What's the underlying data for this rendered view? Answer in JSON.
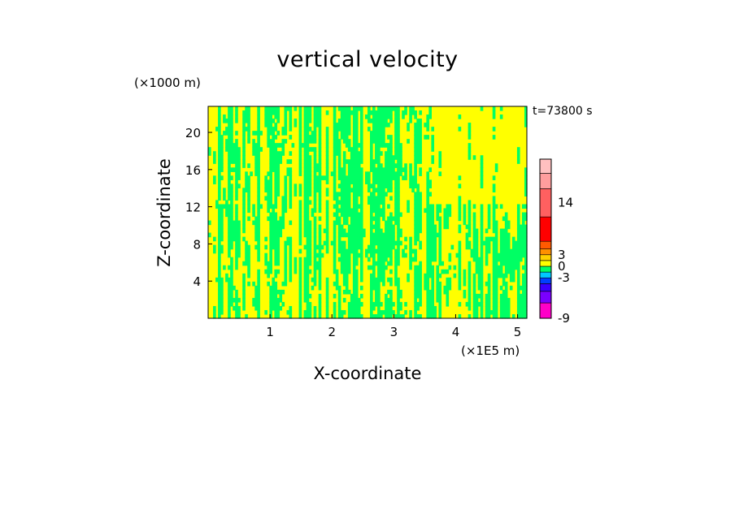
{
  "chart_data": {
    "type": "heatmap",
    "title": "vertical velocity",
    "xlabel": "X-coordinate",
    "ylabel": "Z-coordinate",
    "x_unit": "(×1E5 m)",
    "y_unit": "(×1000 m)",
    "time_label": "t=73800 s",
    "x_ticks": [
      1,
      2,
      3,
      4,
      5
    ],
    "y_ticks": [
      4,
      8,
      12,
      16,
      20
    ],
    "xlim": [
      0,
      5.15
    ],
    "ylim": [
      0,
      22.8
    ],
    "colorbar": {
      "tick_labels": [
        "-9",
        "-3",
        "0",
        "3",
        "14"
      ],
      "tick_values": [
        -9,
        -3,
        0,
        3,
        14
      ],
      "levels": [
        {
          "color": "#ff00c8"
        },
        {
          "color": "#7a00ff"
        },
        {
          "color": "#3a00ff"
        },
        {
          "color": "#0040ff"
        },
        {
          "color": "#00c8ff"
        },
        {
          "color": "#00ff64"
        },
        {
          "color": "#ffff00"
        },
        {
          "color": "#ffd000"
        },
        {
          "color": "#ff9000"
        },
        {
          "color": "#ff5a00"
        },
        {
          "color": "#ff0000"
        },
        {
          "color": "#ff6060"
        },
        {
          "color": "#ff9e9e"
        },
        {
          "color": "#ffc0c0"
        }
      ]
    },
    "field_colors": {
      "updraft": "#ffff00",
      "downdraft": "#00ff64"
    }
  }
}
